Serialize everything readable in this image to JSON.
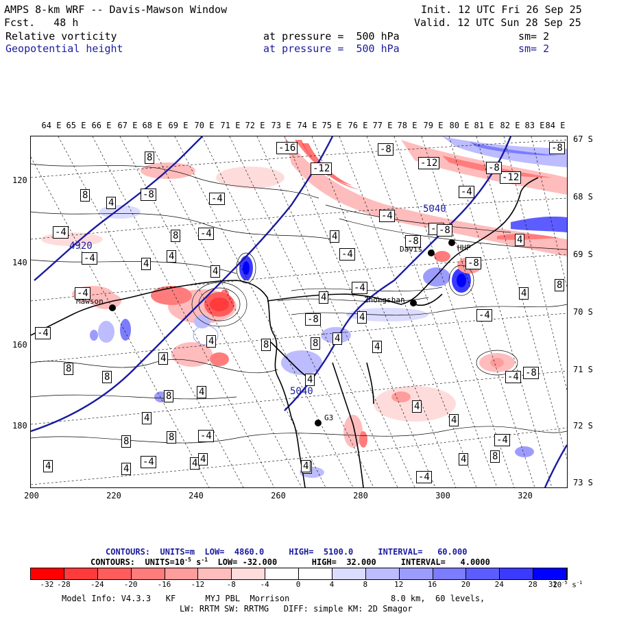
{
  "header": {
    "title": "AMPS 8-km WRF -- Davis-Mawson Window",
    "init": "Init. 12 UTC Fri 26 Sep 25",
    "fcst": "Fcst.   48 h",
    "valid": "Valid. 12 UTC Sun 28 Sep 25",
    "field1": {
      "name": "Relative vorticity",
      "level": "at pressure =  500 hPa",
      "sm": "sm= 2"
    },
    "field2": {
      "name": "Geopotential height",
      "level": "at pressure =  500 hPa",
      "sm": "sm= 2"
    }
  },
  "map": {
    "lon_labels": [
      "64 E",
      "65 E",
      "66 E",
      "67 E",
      "68 E",
      "69 E",
      "70 E",
      "71 E",
      "72 E",
      "73 E",
      "74 E",
      "75 E",
      "76 E",
      "77 E",
      "78 E",
      "79 E",
      "80 E",
      "81 E",
      "82 E",
      "83 E",
      "84 E"
    ],
    "lat_labels": [
      "67 S",
      "68 S",
      "69 S",
      "70 S",
      "71 S",
      "72 S",
      "73 S"
    ],
    "x_ticks": [
      "200",
      "220",
      "240",
      "260",
      "280",
      "300",
      "320"
    ],
    "y_ticks": [
      "120",
      "140",
      "160",
      "180"
    ],
    "stations": [
      {
        "name": "Mawson"
      },
      {
        "name": "Davis"
      },
      {
        "name": "Zhongshan"
      },
      {
        "name": "HHP"
      },
      {
        "name": "G3"
      }
    ],
    "height_labels": [
      "4920",
      "5040",
      "5040"
    ],
    "vort_labels": [
      "-16",
      "-12",
      "-8",
      "-12",
      "-12",
      "-8",
      "-8",
      "8",
      "8",
      "-8",
      "-4",
      "4",
      "8",
      "-4",
      "-4",
      "-4",
      "-8",
      "4",
      "-8",
      "4",
      "-4",
      "4",
      "-4",
      "4",
      "4",
      "-4",
      "-4",
      "-4",
      "4",
      "8",
      "-8",
      "4",
      "-4",
      "-8",
      "-4",
      "4",
      "4",
      "8",
      "8",
      "-4",
      "8",
      "4",
      "8",
      "-4",
      "-8",
      "4",
      "4",
      "8",
      "4",
      "4",
      "8",
      "4",
      "-4",
      "4",
      "-4",
      "8",
      "4",
      "4",
      "4",
      "4",
      "-4",
      "4",
      "-4",
      "8",
      "4",
      "4",
      "4"
    ]
  },
  "contours": {
    "height": {
      "label": "CONTOURS:",
      "units": "UNITS=m",
      "low": "LOW=  4860.0",
      "high": "HIGH=  5100.0",
      "interval": "INTERVAL=   60.000"
    },
    "vort": {
      "label": "CONTOURS:",
      "units": "UNITS=10",
      "units_exp": "-5",
      "units_tail": " s",
      "units_tail_exp": "-1",
      "low": "LOW= -32.000",
      "high": "HIGH=  32.000",
      "interval": "INTERVAL=   4.0000"
    }
  },
  "colorbar": {
    "colors": [
      "#ff0000",
      "#ff3b3b",
      "#ff5d5d",
      "#ff7c7c",
      "#ff9c9c",
      "#ffbcbc",
      "#ffdcdc",
      "#ffffff",
      "#ffffff",
      "#dcdcff",
      "#bcbcff",
      "#9c9cff",
      "#7c7cff",
      "#5d5dff",
      "#3b3bff",
      "#0000ff"
    ],
    "ticks": [
      "-32",
      "-28",
      "-24",
      "-20",
      "-16",
      "-12",
      "-8",
      "-4",
      "0",
      "4",
      "8",
      "12",
      "16",
      "20",
      "24",
      "28",
      "32"
    ],
    "unit": "10",
    "unit_exp": "-5",
    "unit_tail": " s",
    "unit_tail_exp": "-1"
  },
  "footer": {
    "line1a": "Model Info: V4.3.3   KF      MYJ PBL  Morrison",
    "line1b": "8.0 km,  60 levels,",
    "line2": "LW: RRTM SW: RRTMG   DIFF: simple KM: 2D Smagor"
  }
}
